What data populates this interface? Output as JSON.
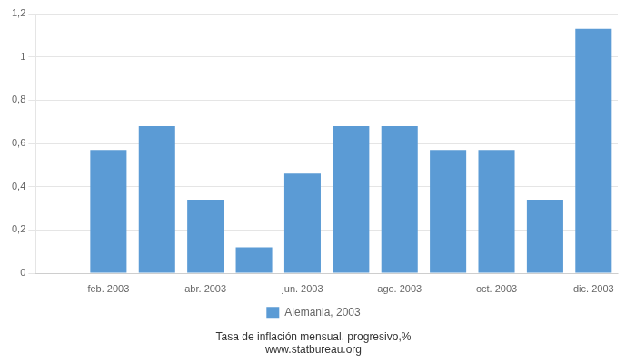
{
  "chart_data": {
    "type": "bar",
    "categories": [
      null,
      "feb. 2003",
      null,
      "abr. 2003",
      null,
      "jun. 2003",
      null,
      "ago. 2003",
      null,
      "oct. 2003",
      null,
      "dic. 2003"
    ],
    "series": [
      {
        "name": "Alemania, 2003",
        "color": "#5b9bd5",
        "values": [
          0.0,
          0.57,
          0.68,
          0.34,
          0.12,
          0.46,
          0.68,
          0.68,
          0.57,
          0.57,
          0.34,
          1.13
        ]
      }
    ],
    "ylim": [
      0,
      1.2
    ],
    "yticks": [
      0,
      {
        "value": 0.2,
        "label": "0,2"
      },
      {
        "value": 0.4,
        "label": "0,4"
      },
      {
        "value": 0.6,
        "label": "0,6"
      },
      {
        "value": 0.8,
        "label": "0,8"
      },
      1,
      {
        "value": 1.2,
        "label": "1,2"
      }
    ],
    "grid": true,
    "legend": "bottom",
    "annotations": [
      "Tasa de inflación mensual, progresivo,%",
      "www.statbureau.org"
    ]
  }
}
